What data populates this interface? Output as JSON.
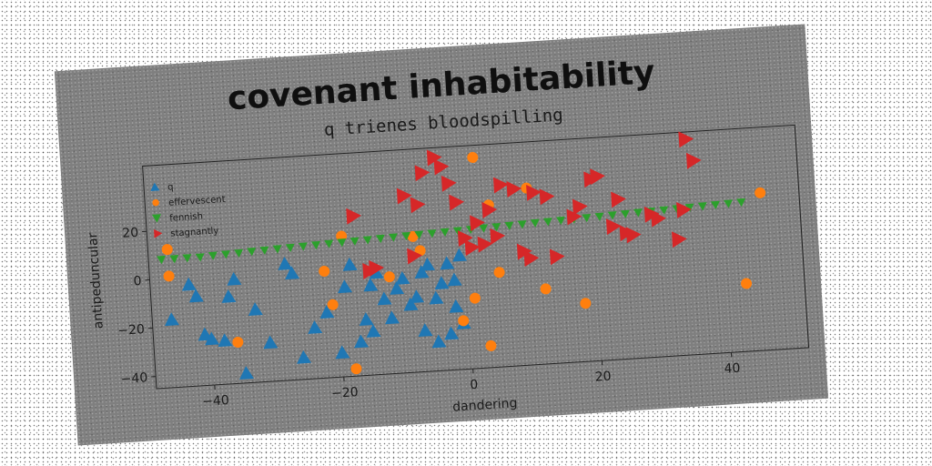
{
  "chart_data": {
    "type": "scatter",
    "title": "covenant inhabitability",
    "subtitle": "q trienes bloodspilling",
    "xlabel": "dandering",
    "ylabel": "antipeduncular",
    "xlim": [
      -49,
      52
    ],
    "ylim": [
      -45,
      47
    ],
    "xticks": [
      -40,
      -20,
      0,
      20,
      40
    ],
    "yticks": [
      -40,
      -20,
      0,
      20
    ],
    "grid": false,
    "legend_position": "upper-left",
    "series": [
      {
        "name": "q",
        "marker": "triangle-up",
        "color": "#1f77b4",
        "points": [
          [
            -46,
            -17
          ],
          [
            -43,
            -3
          ],
          [
            -42,
            -8
          ],
          [
            -41,
            -24
          ],
          [
            -40,
            -26
          ],
          [
            -38,
            -27
          ],
          [
            -37,
            -9
          ],
          [
            -36,
            -2
          ],
          [
            -35,
            -41
          ],
          [
            -33,
            -15
          ],
          [
            -31,
            -29
          ],
          [
            -28,
            3
          ],
          [
            -27,
            -1
          ],
          [
            -26,
            -36
          ],
          [
            -24,
            -24
          ],
          [
            -22,
            -18
          ],
          [
            -20,
            -35
          ],
          [
            -19,
            -8
          ],
          [
            -18,
            1
          ],
          [
            -17,
            -31
          ],
          [
            -16,
            -22
          ],
          [
            -15,
            -27
          ],
          [
            -15,
            -8
          ],
          [
            -14,
            -3
          ],
          [
            -13,
            -14
          ],
          [
            -12,
            -22
          ],
          [
            -11,
            -10
          ],
          [
            -10,
            -6
          ],
          [
            -9,
            -17
          ],
          [
            -8,
            -14
          ],
          [
            -7,
            -4
          ],
          [
            -7,
            -28
          ],
          [
            -6,
            -1
          ],
          [
            -5,
            -15
          ],
          [
            -5,
            -33
          ],
          [
            -4,
            -9
          ],
          [
            -3,
            -30
          ],
          [
            -2,
            -19
          ],
          [
            -2,
            -8
          ],
          [
            -1,
            2
          ],
          [
            -1,
            -26
          ],
          [
            -3,
            -1
          ]
        ]
      },
      {
        "name": "effervescent",
        "marker": "circle",
        "color": "#ff7f0e",
        "points": [
          [
            -46,
            1
          ],
          [
            -46,
            12
          ],
          [
            -36,
            -28
          ],
          [
            -22,
            -1
          ],
          [
            -21,
            -15
          ],
          [
            -19,
            13
          ],
          [
            -18,
            -42
          ],
          [
            -12,
            -5
          ],
          [
            -8,
            11
          ],
          [
            -7,
            5
          ],
          [
            -1,
            -25
          ],
          [
            1,
            -16
          ],
          [
            2,
            42
          ],
          [
            3,
            -36
          ],
          [
            4,
            22
          ],
          [
            5,
            -6
          ],
          [
            10,
            28
          ],
          [
            12,
            -14
          ],
          [
            18,
            -21
          ],
          [
            43,
            -17
          ],
          [
            46,
            20
          ]
        ]
      },
      {
        "name": "fennish",
        "marker": "triangle-down",
        "color": "#2ca02c",
        "points": [
          [
            -47,
            8
          ],
          [
            -45,
            8
          ],
          [
            -43,
            8
          ],
          [
            -41,
            8
          ],
          [
            -39,
            8.3
          ],
          [
            -37,
            8.5
          ],
          [
            -35,
            8.7
          ],
          [
            -33,
            9
          ],
          [
            -31,
            9.2
          ],
          [
            -29,
            9.4
          ],
          [
            -27,
            9.6
          ],
          [
            -25,
            9.8
          ],
          [
            -23,
            10
          ],
          [
            -21,
            10.2
          ],
          [
            -19,
            10.4
          ],
          [
            -17,
            10.6
          ],
          [
            -15,
            10.8
          ],
          [
            -13,
            11
          ],
          [
            -11,
            11.2
          ],
          [
            -9,
            11.4
          ],
          [
            -7,
            11.6
          ],
          [
            -5,
            11.8
          ],
          [
            -3,
            12
          ],
          [
            -1,
            12.2
          ],
          [
            1,
            12.4
          ],
          [
            3,
            12.6
          ],
          [
            5,
            12.8
          ],
          [
            7,
            13
          ],
          [
            9,
            13.2
          ],
          [
            11,
            13.4
          ],
          [
            13,
            13.6
          ],
          [
            15,
            13.8
          ],
          [
            17,
            14
          ],
          [
            19,
            14.2
          ],
          [
            21,
            14.4
          ],
          [
            23,
            14.6
          ],
          [
            25,
            14.8
          ],
          [
            27,
            15
          ],
          [
            29,
            15.2
          ],
          [
            31,
            15.4
          ],
          [
            33,
            15.6
          ],
          [
            35,
            15.8
          ],
          [
            37,
            16
          ],
          [
            39,
            16.2
          ],
          [
            41,
            16.4
          ],
          [
            43,
            16.6
          ]
        ]
      },
      {
        "name": "stagnantly",
        "marker": "triangle-right",
        "color": "#d62728",
        "points": [
          [
            -17,
            21
          ],
          [
            -15,
            -2
          ],
          [
            -14,
            -1
          ],
          [
            -9,
            28
          ],
          [
            -8,
            3
          ],
          [
            -7,
            24
          ],
          [
            -6,
            37
          ],
          [
            -4,
            43
          ],
          [
            -3,
            39
          ],
          [
            -2,
            32
          ],
          [
            -1,
            24
          ],
          [
            0,
            9
          ],
          [
            1,
            5
          ],
          [
            2,
            15
          ],
          [
            3,
            6
          ],
          [
            4,
            20
          ],
          [
            5,
            9
          ],
          [
            6,
            30
          ],
          [
            8,
            28
          ],
          [
            9,
            2
          ],
          [
            10,
            -1
          ],
          [
            11,
            26
          ],
          [
            13,
            24
          ],
          [
            14,
            -1
          ],
          [
            17,
            15
          ],
          [
            18,
            19
          ],
          [
            20,
            30
          ],
          [
            21,
            31
          ],
          [
            23,
            10
          ],
          [
            24,
            21
          ],
          [
            25,
            7
          ],
          [
            26,
            6
          ],
          [
            29,
            14
          ],
          [
            30,
            12
          ],
          [
            33,
            3
          ],
          [
            34,
            15
          ],
          [
            35,
            44
          ],
          [
            36,
            35
          ]
        ]
      }
    ]
  }
}
